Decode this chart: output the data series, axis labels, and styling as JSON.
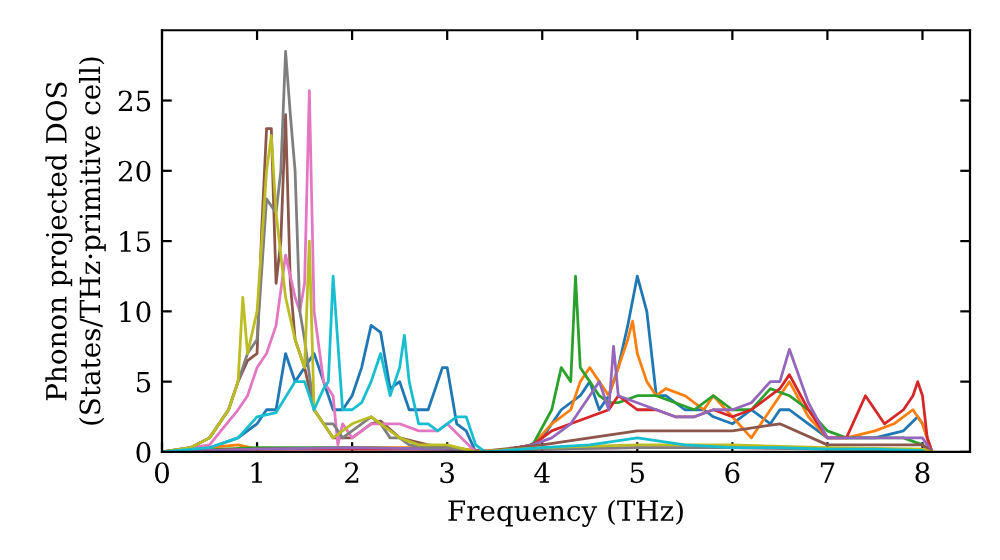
{
  "chart_data": {
    "type": "line",
    "xlabel": "Frequency (THz)",
    "ylabel": "Phonon projected DOS\n(States/THz·primitive cell)",
    "xlim": [
      0,
      8.5
    ],
    "ylim": [
      0,
      30
    ],
    "xticks": [
      0,
      1,
      2,
      3,
      4,
      5,
      6,
      7,
      8
    ],
    "yticks": [
      0,
      5,
      10,
      15,
      20,
      25
    ],
    "grid": false,
    "marker": "none",
    "line_style": "solid",
    "series": [
      {
        "color": "#1f77b4",
        "x": [
          0,
          0.5,
          0.8,
          1.0,
          1.1,
          1.2,
          1.3,
          1.4,
          1.5,
          1.6,
          1.7,
          1.8,
          1.9,
          2.0,
          2.1,
          2.2,
          2.3,
          2.4,
          2.5,
          2.6,
          2.7,
          2.8,
          2.9,
          2.95,
          3.0,
          3.1,
          3.2,
          3.3,
          3.5,
          3.8,
          4.0,
          4.2,
          4.4,
          4.5,
          4.6,
          4.7,
          4.8,
          4.9,
          5.0,
          5.1,
          5.2,
          5.3,
          5.5,
          5.7,
          5.8,
          6.0,
          6.2,
          6.4,
          6.5,
          6.6,
          6.8,
          7.0,
          7.2,
          7.5,
          7.8,
          7.95,
          8.0,
          8.1
        ],
        "values": [
          0,
          0.3,
          1,
          2,
          3,
          3,
          7,
          5,
          6,
          7,
          5,
          3,
          3,
          4,
          6,
          9,
          8.5,
          4.5,
          5,
          3,
          3,
          3,
          5,
          6,
          6,
          2,
          1.5,
          0,
          0,
          0.2,
          1,
          3,
          4,
          5,
          3,
          4,
          6,
          9,
          12.5,
          10,
          4,
          4,
          3,
          3,
          2.5,
          2,
          3,
          2,
          3,
          3,
          2,
          1,
          1,
          1,
          1.5,
          2.5,
          2,
          0
        ]
      },
      {
        "color": "#ff7f0e",
        "x": [
          0,
          0.8,
          1.0,
          2,
          3,
          3.5,
          3.9,
          4.1,
          4.3,
          4.4,
          4.5,
          4.6,
          4.7,
          4.8,
          4.9,
          4.95,
          5.0,
          5.1,
          5.2,
          5.3,
          5.5,
          5.7,
          5.8,
          6.0,
          6.2,
          6.3,
          6.5,
          6.6,
          6.8,
          7.0,
          7.2,
          7.5,
          7.7,
          7.9,
          8.0,
          8.1
        ],
        "values": [
          0,
          0.5,
          0.2,
          0.3,
          0.3,
          0,
          0.5,
          2,
          3,
          5,
          6,
          5,
          4,
          6,
          8,
          9.3,
          7,
          5,
          4,
          4.5,
          4,
          3,
          4,
          2.5,
          1,
          2,
          4,
          5,
          2.5,
          1,
          1,
          1.5,
          2,
          3,
          2,
          0
        ]
      },
      {
        "color": "#2ca02c",
        "x": [
          0,
          1,
          2,
          3,
          3.5,
          3.9,
          4.1,
          4.2,
          4.3,
          4.35,
          4.4,
          4.5,
          4.6,
          4.7,
          4.8,
          5.0,
          5.2,
          5.4,
          5.6,
          5.8,
          6.0,
          6.2,
          6.4,
          6.6,
          6.8,
          7.0,
          7.2,
          7.5,
          7.8,
          8.0,
          8.1
        ],
        "values": [
          0,
          0.3,
          0.3,
          0.2,
          0,
          0.5,
          3,
          6,
          5,
          12.5,
          6,
          5,
          4,
          3.5,
          3.5,
          4,
          4,
          3.5,
          3,
          4,
          3,
          3,
          4.5,
          4,
          3,
          1.5,
          1,
          1,
          1,
          0.5,
          0
        ]
      },
      {
        "color": "#d62728",
        "x": [
          0,
          1,
          2,
          3,
          3.5,
          3.9,
          4.1,
          4.3,
          4.5,
          4.7,
          4.8,
          5.0,
          5.2,
          5.4,
          5.6,
          5.8,
          6.0,
          6.2,
          6.4,
          6.5,
          6.6,
          6.8,
          7.0,
          7.2,
          7.4,
          7.5,
          7.6,
          7.8,
          7.9,
          7.95,
          8.0,
          8.05,
          8.1
        ],
        "values": [
          0,
          0.2,
          0.2,
          0.2,
          0,
          0.5,
          1.5,
          2,
          2.5,
          3,
          4,
          3,
          3,
          2.5,
          2.5,
          3,
          2.5,
          3,
          4,
          4.5,
          5.5,
          3,
          1,
          1,
          4,
          3,
          2,
          3,
          4,
          5,
          4,
          1,
          0
        ]
      },
      {
        "color": "#9467bd",
        "x": [
          0,
          1,
          2,
          3,
          3.5,
          3.9,
          4.1,
          4.3,
          4.5,
          4.6,
          4.7,
          4.75,
          4.8,
          5.0,
          5.2,
          5.4,
          5.6,
          5.8,
          6.0,
          6.2,
          6.4,
          6.5,
          6.6,
          6.8,
          7.0,
          7.2,
          7.5,
          7.8,
          8.0,
          8.1
        ],
        "values": [
          0,
          0.2,
          0.3,
          0.2,
          0,
          0.5,
          1,
          2,
          4,
          5,
          3,
          7.5,
          4,
          3.5,
          3,
          2.5,
          2.5,
          3,
          3,
          3.5,
          5,
          5,
          7.3,
          3.5,
          1,
          1,
          1,
          1,
          1,
          0
        ]
      },
      {
        "color": "#8c564b",
        "x": [
          0,
          0.3,
          0.5,
          0.7,
          0.8,
          0.9,
          1.0,
          1.05,
          1.1,
          1.15,
          1.2,
          1.25,
          1.3,
          1.35,
          1.4,
          1.5,
          1.6,
          1.7,
          1.8,
          2.0,
          2.2,
          2.3,
          2.5,
          2.8,
          3.0,
          3.3,
          4,
          4.5,
          5,
          6,
          6.5,
          7,
          8,
          8.1
        ],
        "values": [
          0,
          0.3,
          1,
          3,
          5,
          6.5,
          7,
          16,
          23,
          23,
          12,
          15,
          24,
          12,
          8,
          6,
          3,
          2,
          1,
          1,
          2,
          2.2,
          1,
          0.5,
          0.3,
          0,
          0.5,
          1,
          1.5,
          1.5,
          2,
          0.5,
          0.5,
          0
        ]
      },
      {
        "color": "#e377c2",
        "x": [
          0,
          0.5,
          0.8,
          0.9,
          1.0,
          1.1,
          1.2,
          1.3,
          1.4,
          1.45,
          1.5,
          1.55,
          1.6,
          1.7,
          1.8,
          1.85,
          1.9,
          2.0,
          2.2,
          2.3,
          2.5,
          2.7,
          2.9,
          3.0,
          3.3,
          4,
          5,
          6,
          7,
          8,
          8.1
        ],
        "values": [
          0,
          0.5,
          3,
          4,
          6,
          7,
          9,
          14,
          11,
          10,
          12,
          25.7,
          10,
          5,
          4,
          0.5,
          2,
          1,
          2,
          2,
          2,
          1.5,
          1.5,
          2,
          0,
          0.2,
          0.3,
          0.3,
          0.2,
          0.1,
          0
        ]
      },
      {
        "color": "#7f7f7f",
        "x": [
          0,
          0.3,
          0.5,
          0.7,
          0.8,
          0.9,
          1.0,
          1.1,
          1.2,
          1.25,
          1.3,
          1.35,
          1.4,
          1.45,
          1.5,
          1.6,
          1.7,
          1.8,
          1.9,
          2.0,
          2.1,
          2.2,
          2.3,
          2.4,
          2.5,
          2.6,
          2.8,
          3.0,
          3.2,
          3.4,
          4,
          5,
          6,
          7,
          8,
          8.1
        ],
        "values": [
          0,
          0.3,
          1,
          3,
          5,
          7,
          8,
          18,
          17,
          20,
          28.5,
          24,
          20,
          10,
          8,
          3,
          2,
          2,
          1,
          1.5,
          2,
          2.5,
          2,
          1,
          1,
          0.5,
          0.3,
          0.3,
          0.1,
          0,
          0.2,
          0.3,
          0.3,
          0.2,
          0.1,
          0
        ]
      },
      {
        "color": "#bcbd22",
        "x": [
          0,
          0.3,
          0.5,
          0.7,
          0.8,
          0.85,
          0.9,
          1.0,
          1.1,
          1.15,
          1.2,
          1.3,
          1.4,
          1.5,
          1.55,
          1.6,
          1.7,
          1.8,
          1.9,
          2.0,
          2.2,
          2.3,
          2.5,
          2.7,
          3.0,
          3.3,
          4,
          5,
          6,
          7,
          8,
          8.1
        ],
        "values": [
          0,
          0.3,
          1,
          3,
          5,
          11,
          7,
          10,
          20,
          22.5,
          17,
          11,
          8,
          6,
          15,
          3,
          2,
          1,
          1.5,
          2,
          2.5,
          2,
          1,
          0.5,
          0.5,
          0,
          0.3,
          0.5,
          0.5,
          0.3,
          0.2,
          0
        ]
      },
      {
        "color": "#17becf",
        "x": [
          0,
          0.5,
          0.8,
          1.0,
          1.2,
          1.4,
          1.5,
          1.6,
          1.7,
          1.75,
          1.8,
          1.9,
          2.0,
          2.1,
          2.2,
          2.3,
          2.4,
          2.5,
          2.55,
          2.6,
          2.7,
          2.8,
          2.9,
          3.0,
          3.1,
          3.2,
          3.3,
          3.4,
          4,
          4.5,
          5,
          5.5,
          6,
          6.5,
          7,
          7.5,
          8
        ],
        "values": [
          0,
          0.3,
          1,
          2.5,
          2.8,
          5,
          5,
          3,
          4.5,
          5,
          12.5,
          3,
          3,
          3.5,
          5,
          7,
          4,
          6,
          8.3,
          5,
          2,
          2,
          1.5,
          2,
          2.5,
          2.5,
          0.5,
          0,
          0.3,
          0.5,
          1,
          0.5,
          0.3,
          0.3,
          0.2,
          0.2,
          0.1
        ]
      }
    ]
  }
}
